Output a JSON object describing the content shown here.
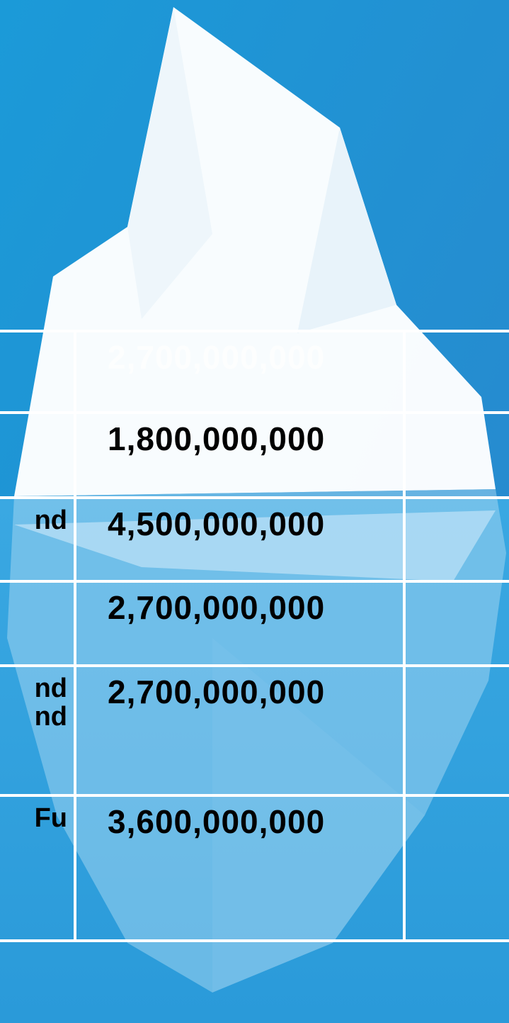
{
  "table": {
    "rows": [
      {
        "label": "",
        "value": "2,700,000,000"
      },
      {
        "label": "",
        "value": "1,800,000,000"
      },
      {
        "label": "nd",
        "value": "4,500,000,000"
      },
      {
        "label": "",
        "value": "2,700,000,000"
      },
      {
        "label": "nd\nnd",
        "value": "2,700,000,000"
      },
      {
        "label": "Fu",
        "value": "3,600,000,000"
      }
    ]
  }
}
